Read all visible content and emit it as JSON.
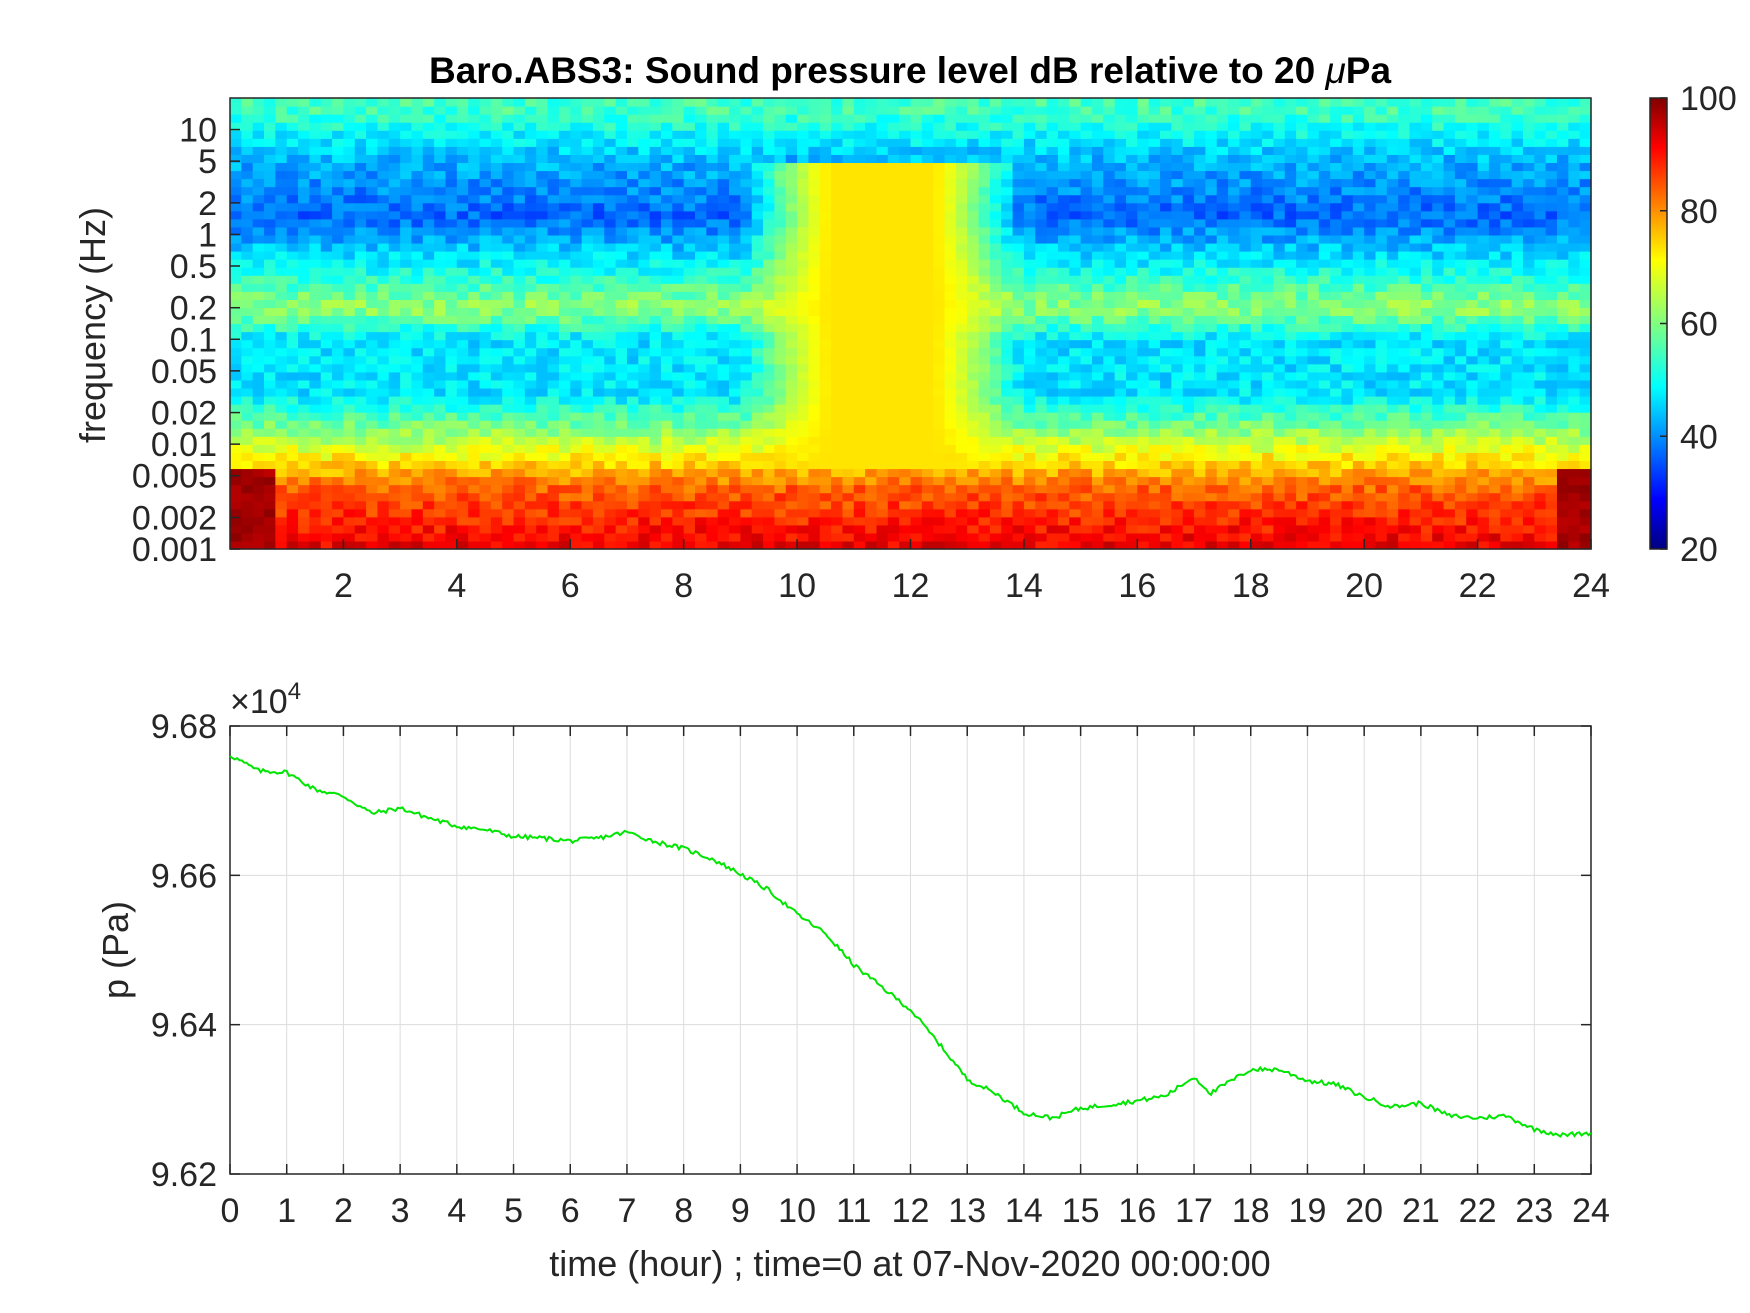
{
  "chart_data": [
    {
      "type": "heatmap",
      "title_main": "Baro.ABS3: Sound pressure level dB relative to 20 ",
      "title_mu": "μ",
      "title_end": "Pa",
      "ylabel": "frequency (Hz)",
      "xlabel": "",
      "x_tick_labels": [
        "2",
        "4",
        "6",
        "8",
        "10",
        "12",
        "14",
        "16",
        "18",
        "20",
        "22",
        "24"
      ],
      "x_ticks": [
        2,
        4,
        6,
        8,
        10,
        12,
        14,
        16,
        18,
        20,
        22,
        24
      ],
      "xlim": [
        0,
        24
      ],
      "y_scale": "log",
      "y_tick_labels": [
        "10",
        "5",
        "2",
        "1",
        "0.5",
        "0.2",
        "0.1",
        "0.05",
        "0.02",
        "0.01",
        "0.005",
        "0.002",
        "0.001"
      ],
      "y_ticks": [
        10,
        5,
        2,
        1,
        0.5,
        0.2,
        0.1,
        0.05,
        0.02,
        0.01,
        0.005,
        0.002,
        0.001
      ],
      "ylim": [
        0.001,
        20
      ],
      "colormap": "jet",
      "colorbar": {
        "range": [
          20,
          100
        ],
        "tick_labels": [
          "100",
          "80",
          "60",
          "40",
          "20"
        ],
        "ticks": [
          100,
          80,
          60,
          40,
          20
        ]
      },
      "background_levels_db": [
        {
          "freq_hz": 15,
          "db": 55
        },
        {
          "freq_hz": 5,
          "db": 44
        },
        {
          "freq_hz": 1.5,
          "db": 38
        },
        {
          "freq_hz": 0.5,
          "db": 50
        },
        {
          "freq_hz": 0.2,
          "db": 62
        },
        {
          "freq_hz": 0.1,
          "db": 48
        },
        {
          "freq_hz": 0.03,
          "db": 48
        },
        {
          "freq_hz": 0.01,
          "db": 66
        },
        {
          "freq_hz": 0.004,
          "db": 82
        },
        {
          "freq_hz": 0.001,
          "db": 92
        }
      ],
      "noise_event_hours": [
        9,
        14
      ],
      "noise_event_peak_db": 72
    },
    {
      "type": "line",
      "ylabel": "p (Pa)",
      "xlabel": "time (hour) ; time=0 at 07-Nov-2020 00:00:00",
      "exponent_prefix": "×10",
      "exponent_power": "4",
      "x_tick_labels": [
        "0",
        "1",
        "2",
        "3",
        "4",
        "5",
        "6",
        "7",
        "8",
        "9",
        "10",
        "11",
        "12",
        "13",
        "14",
        "15",
        "16",
        "17",
        "18",
        "19",
        "20",
        "21",
        "22",
        "23",
        "24"
      ],
      "x_ticks": [
        0,
        1,
        2,
        3,
        4,
        5,
        6,
        7,
        8,
        9,
        10,
        11,
        12,
        13,
        14,
        15,
        16,
        17,
        18,
        19,
        20,
        21,
        22,
        23,
        24
      ],
      "xlim": [
        0,
        24
      ],
      "y_tick_labels": [
        "9.68",
        "9.66",
        "9.64",
        "9.62"
      ],
      "y_ticks": [
        96800,
        96600,
        96400,
        96200
      ],
      "ylim": [
        96200,
        96800
      ],
      "grid": true,
      "line_color": "#00e600",
      "series": [
        {
          "x": [
            0,
            0.5,
            1,
            1.5,
            2,
            2.5,
            3,
            3.5,
            4,
            4.5,
            5,
            5.5,
            6,
            6.5,
            7,
            7.5,
            8,
            8.5,
            9,
            9.5,
            10,
            10.5,
            11,
            11.5,
            12,
            12.5,
            13,
            13.5,
            14,
            14.5,
            15,
            15.5,
            16,
            16.5,
            17,
            17.3,
            17.5,
            18,
            18.5,
            19,
            19.5,
            20,
            20.5,
            21,
            21.5,
            22,
            22.5,
            23,
            23.5,
            24
          ],
          "y": [
            96761,
            96740,
            96738,
            96715,
            96706,
            96683,
            96690,
            96677,
            96666,
            96661,
            96652,
            96650,
            96646,
            96650,
            96658,
            96645,
            96636,
            96622,
            96602,
            96580,
            96548,
            96522,
            96480,
            96450,
            96420,
            96375,
            96327,
            96308,
            96282,
            96275,
            96288,
            96293,
            96298,
            96305,
            96330,
            96308,
            96318,
            96340,
            96340,
            96325,
            96320,
            96303,
            96290,
            96295,
            96278,
            96275,
            96278,
            96260,
            96252,
            96255
          ]
        }
      ]
    }
  ]
}
